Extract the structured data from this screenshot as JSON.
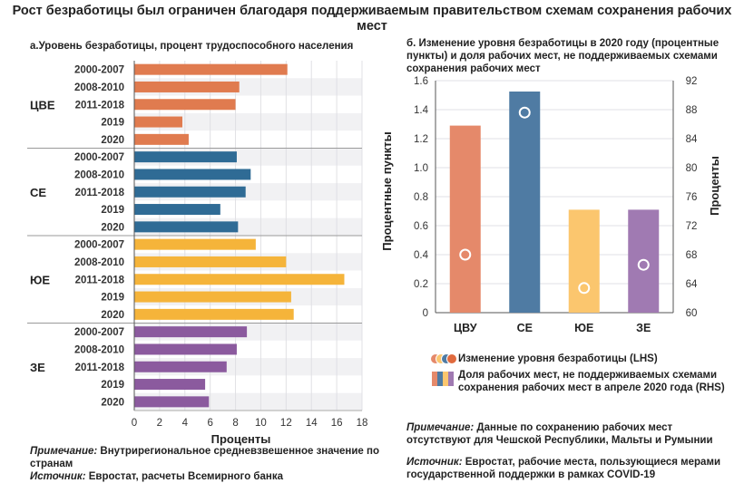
{
  "title": "Рост безработицы был ограничен благодаря поддерживаемым правительством схемам сохранения рабочих мест",
  "chart_data": [
    {
      "type": "bar",
      "orientation": "horizontal",
      "title": "а.Уровень безработицы, процент трудоспособного населения",
      "xlabel": "Проценты",
      "xlim": [
        0,
        18
      ],
      "xticks": [
        0,
        2,
        4,
        6,
        8,
        10,
        12,
        14,
        16,
        18
      ],
      "groups": [
        {
          "name": "ЦВЕ",
          "color": "#e07b4f",
          "categories": [
            "2000-2007",
            "2008-2010",
            "2011-2018",
            "2019",
            "2020"
          ],
          "values": [
            12.1,
            8.3,
            8.0,
            3.8,
            4.3
          ]
        },
        {
          "name": "СЕ",
          "color": "#2f6b95",
          "categories": [
            "2000-2007",
            "2008-2010",
            "2011-2018",
            "2019",
            "2020"
          ],
          "values": [
            8.1,
            9.2,
            8.8,
            6.8,
            8.2
          ]
        },
        {
          "name": "ЮЕ",
          "color": "#f5b43a",
          "categories": [
            "2000-2007",
            "2008-2010",
            "2011-2018",
            "2019",
            "2020"
          ],
          "values": [
            9.6,
            12.0,
            16.6,
            12.4,
            12.6
          ]
        },
        {
          "name": "ЗЕ",
          "color": "#8b5a9e",
          "categories": [
            "2000-2007",
            "2008-2010",
            "2011-2018",
            "2019",
            "2020"
          ],
          "values": [
            8.9,
            8.1,
            7.3,
            5.6,
            5.9
          ]
        }
      ]
    },
    {
      "type": "bar",
      "title": "б. Изменение уровня безработицы в 2020 году (процентные пункты) и доля рабочих мест, не поддерживаемых схемами сохранения рабочих мест",
      "categories": [
        "ЦВУ",
        "СЕ",
        "ЮЕ",
        "ЗЕ"
      ],
      "bar_colors": [
        "#e5896a",
        "#4f7ba3",
        "#fbc66e",
        "#a07ab2"
      ],
      "dot_colors": [
        "#e5896a",
        "#4f7ba3",
        "#fbc66e",
        "#a07ab2"
      ],
      "ylabel_left": "Процентные пункты",
      "ylabel_right": "Проценты",
      "ylim_left": [
        0,
        1.6
      ],
      "yticks_left": [
        "0",
        "0.2",
        "0.4",
        "0.6",
        "0.8",
        "1.0",
        "1.2",
        "1.4",
        "1.6"
      ],
      "ylim_right": [
        60,
        92
      ],
      "yticks_right": [
        "60",
        "64",
        "68",
        "72",
        "76",
        "80",
        "84",
        "88",
        "92"
      ],
      "series": [
        {
          "name": "Доля рабочих мест, не поддерживаемых схемами сохранения рабочих мест в апреле 2020 года (RHS)",
          "axis": "right",
          "render": "bar",
          "values": [
            85.8,
            90.5,
            74.2,
            74.2
          ]
        },
        {
          "name": "Изменение уровня безработицы (LHS)",
          "axis": "left",
          "render": "dot",
          "values": [
            0.4,
            1.38,
            0.17,
            0.33
          ]
        }
      ]
    }
  ],
  "notes": {
    "a_note_label": "Примечание:",
    "a_note_text": " Внутрирегиональное средневзвешенное значение по странам",
    "a_source_label": "Источник:",
    "a_source_text": " Евростат, расчеты Всемирного банка",
    "b_note_label": "Примечание:",
    "b_note_text": " Данные по сохранению рабочих мест отсутствуют для Чешской Республики, Мальты и Румынии",
    "b_source_label": "Источник:",
    "b_source_text": " Евростат, рабочие места, пользующиеся мерами государственной поддержки в рамках COVID-19"
  }
}
